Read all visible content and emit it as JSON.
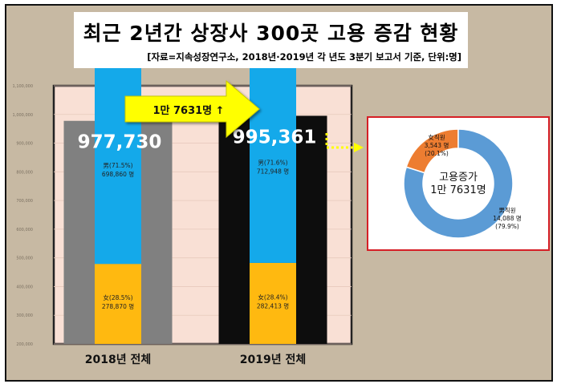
{
  "title": "최근 2년간 상장사 300곳 고용 증감 현황",
  "subtitle": "[자료=지속성장연구소, 2018년·2019년 각 년도 3분기 보고서 기준, 단위:명]",
  "colors": {
    "total_2018": "#808080",
    "total_2019": "#0d0d0d",
    "male": "#14a9ea",
    "female": "#ffb910",
    "arrow": "#ffff00",
    "plot_bg": "#f9e0d5",
    "frame_bg": "#c7b9a3",
    "donut_male": "#5b9bd5",
    "donut_female": "#ed7d31",
    "panel_border": "#d61f26"
  },
  "arrow_label": "1만 7631명 ↑",
  "chart_data": [
    {
      "type": "bar",
      "ylim": [
        200000,
        1100000
      ],
      "yticks": [
        200000,
        300000,
        400000,
        500000,
        600000,
        700000,
        800000,
        900000,
        1000000,
        1100000
      ],
      "ytick_labels": [
        "200,000",
        "300,000",
        "400,000",
        "500,000",
        "600,000",
        "700,000",
        "800,000",
        "900,000",
        "1,000,000",
        "1,100,000"
      ],
      "grid": true,
      "categories": [
        "2018년 전체",
        "2019년 전체"
      ],
      "series": [
        {
          "values": [
            977730,
            995361
          ],
          "labels": [
            "977,730",
            "995,361"
          ]
        },
        {
          "values": [
            698860,
            712948
          ],
          "labels": [
            "男(71.5%)\n698,860 명",
            "男(71.6%)\n712,948 명"
          ]
        },
        {
          "values": [
            278870,
            282413
          ],
          "labels": [
            "女(28.5%)\n278,870 명",
            "女(28.4%)\n282,413 명"
          ]
        }
      ]
    },
    {
      "type": "pie",
      "center_label": "고용증가\n1만 7631명",
      "slices": [
        {
          "value": 14088,
          "percent": 79.9,
          "label": "男직원\n14,088 명\n(79.9%)"
        },
        {
          "value": 3543,
          "percent": 20.1,
          "label": "女직원\n3,543 명\n(20.1%)"
        }
      ]
    }
  ]
}
